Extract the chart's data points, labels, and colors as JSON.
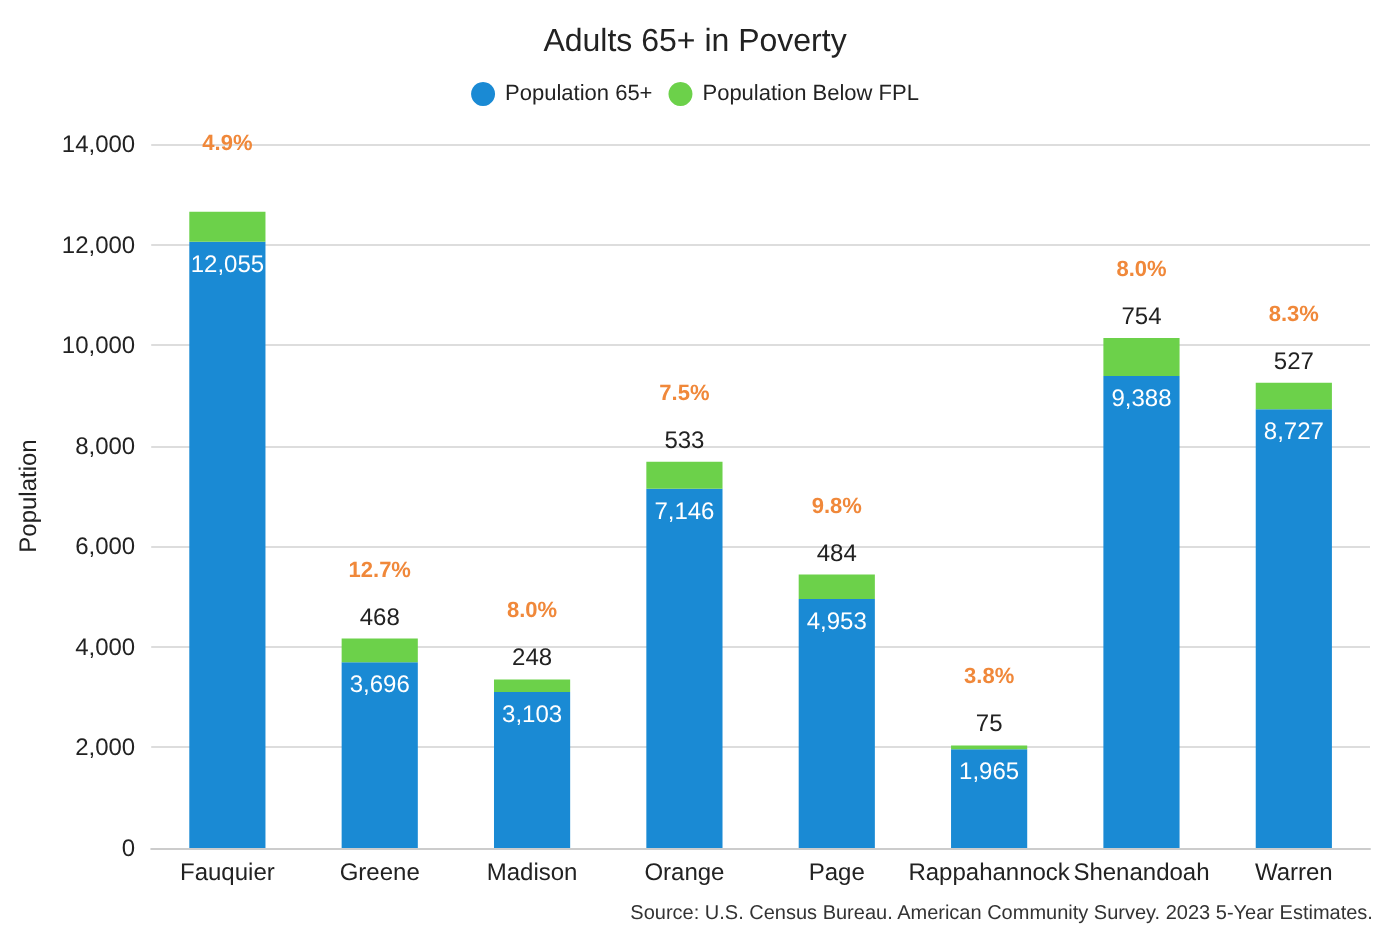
{
  "chart_data": {
    "type": "bar",
    "title": "Adults 65+ in Poverty",
    "ylabel": "Population",
    "stacked": true,
    "categories": [
      "Fauquier",
      "Greene",
      "Madison",
      "Orange",
      "Page",
      "Rappahannock",
      "Shenandoah",
      "Warren"
    ],
    "series": [
      {
        "name": "Population 65+",
        "color": "#1a8ad4",
        "values": [
          12055,
          3696,
          3103,
          7146,
          4953,
          1965,
          9388,
          8727
        ],
        "value_labels": [
          "12,055",
          "3,696",
          "3,103",
          "7,146",
          "4,953",
          "1,965",
          "9,388",
          "8,727"
        ]
      },
      {
        "name": "Population Below FPL",
        "color": "#6cd14a",
        "values": [
          600,
          468,
          248,
          533,
          484,
          75,
          754,
          527
        ],
        "value_labels": [
          null,
          "468",
          "248",
          "533",
          "484",
          "75",
          "754",
          "527"
        ]
      }
    ],
    "annotations": [
      "4.9%",
      "12.7%",
      "8.0%",
      "7.5%",
      "9.8%",
      "3.8%",
      "8.0%",
      "8.3%",
      "Source: U.S. Census Bureau. American Community Survey. 2023 5-Year Estimates."
    ],
    "ylim": [
      0,
      14000
    ],
    "yticks": [
      0,
      {
        "value": 2000,
        "label": "2,000"
      },
      {
        "value": 4000,
        "label": "4,000"
      },
      {
        "value": 6000,
        "label": "6,000"
      },
      {
        "value": 8000,
        "label": "8,000"
      },
      {
        "value": 10000,
        "label": "10,000"
      },
      {
        "value": 12000,
        "label": "12,000"
      },
      {
        "value": 14000,
        "label": "14,000"
      }
    ],
    "grid": "y",
    "legend": "top"
  }
}
